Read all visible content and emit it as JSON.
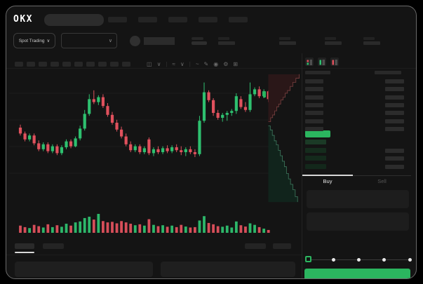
{
  "header": {
    "logo_text": "OKX",
    "nav_pill_count": 5
  },
  "subheader": {
    "market_type_label": "Spot Trading",
    "chevron_glyph": "∨",
    "stat_group_count": 4
  },
  "chart_toolbar": {
    "timeframe_pill_count": 10,
    "icons": [
      {
        "name": "candle-style-icon",
        "glyph": "◫"
      },
      {
        "name": "chevron-down-icon",
        "glyph": "∨"
      },
      {
        "name": "divider",
        "glyph": "|"
      },
      {
        "name": "indicator-icon",
        "glyph": "≈"
      },
      {
        "name": "chevron-down-icon",
        "glyph": "∨"
      },
      {
        "name": "divider",
        "glyph": "|"
      },
      {
        "name": "line-tool-icon",
        "glyph": "~"
      },
      {
        "name": "draw-tool-icon",
        "glyph": "✎"
      },
      {
        "name": "camera-icon",
        "glyph": "◉"
      },
      {
        "name": "settings-icon",
        "glyph": "⚙"
      },
      {
        "name": "fullscreen-icon",
        "glyph": "⊞"
      }
    ]
  },
  "chart_data": {
    "type": "candlestick+volume+depth",
    "price_scale": [
      0,
      100
    ],
    "grid_on": true,
    "colors": {
      "up": "#2ec06f",
      "down": "#e0515d",
      "grid": "#1d1d1d"
    },
    "candles": [
      [
        50,
        53,
        42,
        44
      ],
      [
        44,
        46,
        36,
        38
      ],
      [
        38,
        44,
        36,
        42
      ],
      [
        42,
        44,
        32,
        34
      ],
      [
        34,
        37,
        26,
        28
      ],
      [
        28,
        35,
        26,
        33
      ],
      [
        33,
        35,
        24,
        26
      ],
      [
        26,
        33,
        24,
        31
      ],
      [
        31,
        33,
        22,
        24
      ],
      [
        24,
        32,
        22,
        30
      ],
      [
        30,
        38,
        28,
        36
      ],
      [
        36,
        38,
        29,
        31
      ],
      [
        31,
        41,
        30,
        39
      ],
      [
        39,
        52,
        37,
        49
      ],
      [
        49,
        68,
        47,
        64
      ],
      [
        64,
        84,
        62,
        79
      ],
      [
        79,
        88,
        74,
        76
      ],
      [
        76,
        83,
        73,
        81
      ],
      [
        81,
        84,
        70,
        72
      ],
      [
        72,
        75,
        61,
        63
      ],
      [
        63,
        66,
        53,
        55
      ],
      [
        55,
        58,
        46,
        48
      ],
      [
        48,
        51,
        39,
        41
      ],
      [
        41,
        44,
        31,
        33
      ],
      [
        33,
        36,
        25,
        27
      ],
      [
        27,
        33,
        25,
        31
      ],
      [
        31,
        33,
        23,
        25
      ],
      [
        25,
        31,
        23,
        29
      ],
      [
        38,
        40,
        22,
        24
      ],
      [
        24,
        30,
        21,
        28
      ],
      [
        28,
        31,
        23,
        25
      ],
      [
        25,
        31,
        23,
        29
      ],
      [
        29,
        32,
        24,
        26
      ],
      [
        26,
        32,
        24,
        30
      ],
      [
        30,
        33,
        25,
        27
      ],
      [
        27,
        31,
        22,
        25
      ],
      [
        25,
        30,
        21,
        28
      ],
      [
        28,
        31,
        23,
        25
      ],
      [
        25,
        28,
        20,
        23
      ],
      [
        23,
        62,
        21,
        57
      ],
      [
        57,
        96,
        55,
        86
      ],
      [
        86,
        88,
        76,
        78
      ],
      [
        78,
        80,
        62,
        65
      ],
      [
        65,
        68,
        58,
        60
      ],
      [
        60,
        65,
        56,
        63
      ],
      [
        63,
        67,
        57,
        65
      ],
      [
        65,
        69,
        62,
        67
      ],
      [
        67,
        85,
        64,
        82
      ],
      [
        79,
        82,
        69,
        71
      ],
      [
        71,
        76,
        66,
        68
      ],
      [
        68,
        96,
        66,
        84
      ],
      [
        84,
        91,
        82,
        89
      ],
      [
        89,
        92,
        80,
        82
      ],
      [
        82,
        89,
        80,
        87
      ],
      [
        87,
        88,
        76,
        79
      ]
    ],
    "volumes": [
      38,
      30,
      25,
      42,
      35,
      28,
      45,
      30,
      40,
      32,
      48,
      38,
      55,
      60,
      78,
      85,
      70,
      100,
      62,
      55,
      58,
      50,
      62,
      55,
      48,
      40,
      45,
      38,
      72,
      42,
      35,
      40,
      32,
      38,
      30,
      42,
      33,
      28,
      30,
      65,
      88,
      52,
      45,
      35,
      32,
      38,
      28,
      60,
      40,
      33,
      50,
      42,
      30,
      22,
      15
    ],
    "depth": {
      "ask_fill": "#2a1718",
      "ask_line": "#7a4040",
      "bid_fill": "#11241c",
      "bid_line": "#3f7a5f",
      "asks": [
        [
          0.03,
          0.39
        ],
        [
          0.1,
          0.36
        ],
        [
          0.16,
          0.34
        ],
        [
          0.22,
          0.31
        ],
        [
          0.28,
          0.28
        ],
        [
          0.34,
          0.26
        ],
        [
          0.4,
          0.23
        ],
        [
          0.47,
          0.21
        ],
        [
          0.53,
          0.18
        ],
        [
          0.6,
          0.16
        ],
        [
          0.68,
          0.13
        ],
        [
          0.76,
          0.1
        ],
        [
          0.85,
          0.07
        ],
        [
          0.95,
          0.04
        ]
      ],
      "bids": [
        [
          0.03,
          0.42
        ],
        [
          0.09,
          0.45
        ],
        [
          0.15,
          0.49
        ],
        [
          0.21,
          0.53
        ],
        [
          0.27,
          0.56
        ],
        [
          0.33,
          0.6
        ],
        [
          0.39,
          0.64
        ],
        [
          0.45,
          0.68
        ],
        [
          0.51,
          0.72
        ],
        [
          0.57,
          0.77
        ],
        [
          0.63,
          0.81
        ],
        [
          0.69,
          0.85
        ],
        [
          0.76,
          0.89
        ],
        [
          0.83,
          0.94
        ],
        [
          0.9,
          0.98
        ]
      ]
    }
  },
  "orderbook": {
    "mode_icons": [
      {
        "name": "orderbook-both-icon",
        "top": "#e0515d",
        "bottom": "#2ec06f"
      },
      {
        "name": "orderbook-buys-icon",
        "top": "#2ec06f",
        "bottom": "#2ec06f"
      },
      {
        "name": "orderbook-sells-icon",
        "top": "#e0515d",
        "bottom": "#e0515d"
      }
    ],
    "ask_row_count": 7,
    "bid_row_count": 4,
    "bid_bar_colors": [
      "#1b3a26",
      "#152c1d",
      "#142a1c",
      "#13281b"
    ],
    "last_price_color": "#2bb55f"
  },
  "trade_panel": {
    "tabs": [
      {
        "label": "Buy"
      },
      {
        "label": "Sell"
      }
    ],
    "active_tab": "Buy",
    "slider_stop_count": 5,
    "submit_button_color": "#2bb55f"
  },
  "bottom_bar": {
    "left_tab_count": 2,
    "right_tab_count": 2,
    "active_tab_index": 0
  }
}
